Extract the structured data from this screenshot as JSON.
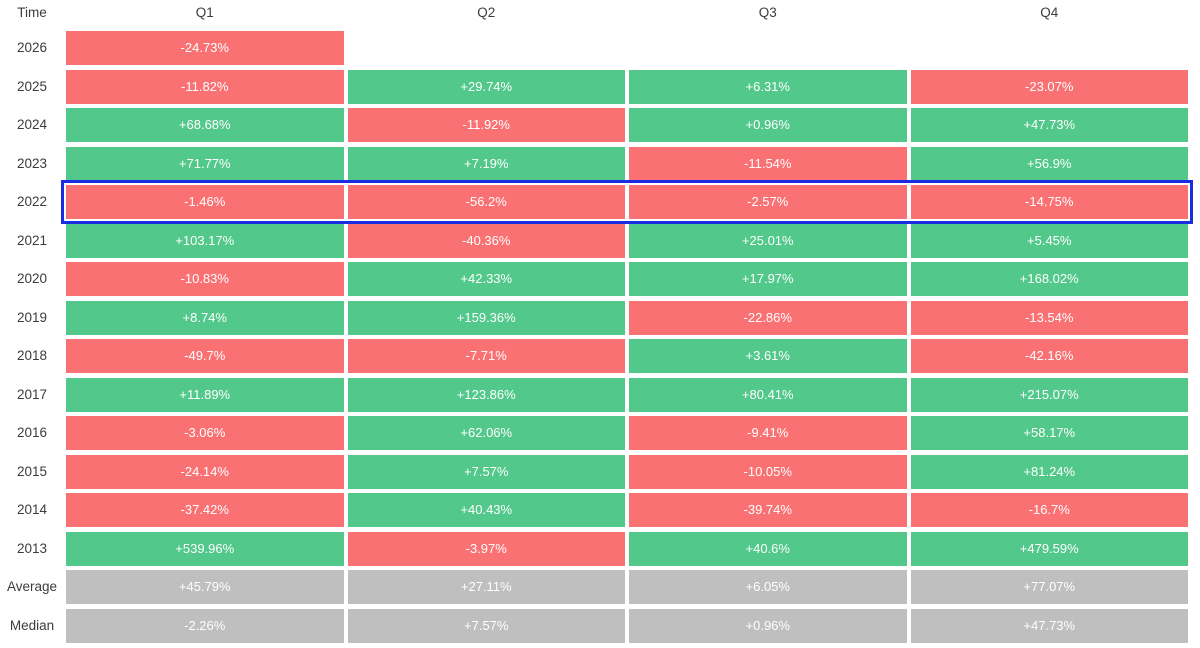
{
  "chart_data": {
    "type": "heatmap",
    "corner_label": "Time",
    "columns": [
      "Q1",
      "Q2",
      "Q3",
      "Q4"
    ],
    "highlighted_row": "2022",
    "rows": [
      {
        "label": "2026",
        "cells": [
          {
            "text": "-24.73%",
            "color": "negative"
          },
          null,
          null,
          null
        ]
      },
      {
        "label": "2025",
        "cells": [
          {
            "text": "-11.82%",
            "color": "negative"
          },
          {
            "text": "+29.74%",
            "color": "positive"
          },
          {
            "text": "+6.31%",
            "color": "positive"
          },
          {
            "text": "-23.07%",
            "color": "negative"
          }
        ]
      },
      {
        "label": "2024",
        "cells": [
          {
            "text": "+68.68%",
            "color": "positive"
          },
          {
            "text": "-11.92%",
            "color": "negative"
          },
          {
            "text": "+0.96%",
            "color": "positive"
          },
          {
            "text": "+47.73%",
            "color": "positive"
          }
        ]
      },
      {
        "label": "2023",
        "cells": [
          {
            "text": "+71.77%",
            "color": "positive"
          },
          {
            "text": "+7.19%",
            "color": "positive"
          },
          {
            "text": "-11.54%",
            "color": "negative"
          },
          {
            "text": "+56.9%",
            "color": "positive"
          }
        ]
      },
      {
        "label": "2022",
        "cells": [
          {
            "text": "-1.46%",
            "color": "negative"
          },
          {
            "text": "-56.2%",
            "color": "negative"
          },
          {
            "text": "-2.57%",
            "color": "negative"
          },
          {
            "text": "-14.75%",
            "color": "negative"
          }
        ]
      },
      {
        "label": "2021",
        "cells": [
          {
            "text": "+103.17%",
            "color": "positive"
          },
          {
            "text": "-40.36%",
            "color": "negative"
          },
          {
            "text": "+25.01%",
            "color": "positive"
          },
          {
            "text": "+5.45%",
            "color": "positive"
          }
        ]
      },
      {
        "label": "2020",
        "cells": [
          {
            "text": "-10.83%",
            "color": "negative"
          },
          {
            "text": "+42.33%",
            "color": "positive"
          },
          {
            "text": "+17.97%",
            "color": "positive"
          },
          {
            "text": "+168.02%",
            "color": "positive"
          }
        ]
      },
      {
        "label": "2019",
        "cells": [
          {
            "text": "+8.74%",
            "color": "positive"
          },
          {
            "text": "+159.36%",
            "color": "positive"
          },
          {
            "text": "-22.86%",
            "color": "negative"
          },
          {
            "text": "-13.54%",
            "color": "negative"
          }
        ]
      },
      {
        "label": "2018",
        "cells": [
          {
            "text": "-49.7%",
            "color": "negative"
          },
          {
            "text": "-7.71%",
            "color": "negative"
          },
          {
            "text": "+3.61%",
            "color": "positive"
          },
          {
            "text": "-42.16%",
            "color": "negative"
          }
        ]
      },
      {
        "label": "2017",
        "cells": [
          {
            "text": "+11.89%",
            "color": "positive"
          },
          {
            "text": "+123.86%",
            "color": "positive"
          },
          {
            "text": "+80.41%",
            "color": "positive"
          },
          {
            "text": "+215.07%",
            "color": "positive"
          }
        ]
      },
      {
        "label": "2016",
        "cells": [
          {
            "text": "-3.06%",
            "color": "negative"
          },
          {
            "text": "+62.06%",
            "color": "positive"
          },
          {
            "text": "-9.41%",
            "color": "negative"
          },
          {
            "text": "+58.17%",
            "color": "positive"
          }
        ]
      },
      {
        "label": "2015",
        "cells": [
          {
            "text": "-24.14%",
            "color": "negative"
          },
          {
            "text": "+7.57%",
            "color": "positive"
          },
          {
            "text": "-10.05%",
            "color": "negative"
          },
          {
            "text": "+81.24%",
            "color": "positive"
          }
        ]
      },
      {
        "label": "2014",
        "cells": [
          {
            "text": "-37.42%",
            "color": "negative"
          },
          {
            "text": "+40.43%",
            "color": "positive"
          },
          {
            "text": "-39.74%",
            "color": "negative"
          },
          {
            "text": "-16.7%",
            "color": "negative"
          }
        ]
      },
      {
        "label": "2013",
        "cells": [
          {
            "text": "+539.96%",
            "color": "positive"
          },
          {
            "text": "-3.97%",
            "color": "negative"
          },
          {
            "text": "+40.6%",
            "color": "positive"
          },
          {
            "text": "+479.59%",
            "color": "positive"
          }
        ]
      },
      {
        "label": "Average",
        "cells": [
          {
            "text": "+45.79%",
            "color": "neutral"
          },
          {
            "text": "+27.11%",
            "color": "neutral"
          },
          {
            "text": "+6.05%",
            "color": "neutral"
          },
          {
            "text": "+77.07%",
            "color": "neutral"
          }
        ]
      },
      {
        "label": "Median",
        "cells": [
          {
            "text": "-2.26%",
            "color": "neutral"
          },
          {
            "text": "+7.57%",
            "color": "neutral"
          },
          {
            "text": "+0.96%",
            "color": "neutral"
          },
          {
            "text": "+47.73%",
            "color": "neutral"
          }
        ]
      }
    ]
  },
  "colors": {
    "positive": "#52c98a",
    "negative": "#fa7173",
    "neutral": "#bfbfbf",
    "highlight_border": "#1b2ce0",
    "header_text": "#3c3c3c",
    "cell_text": "#ffffff"
  }
}
